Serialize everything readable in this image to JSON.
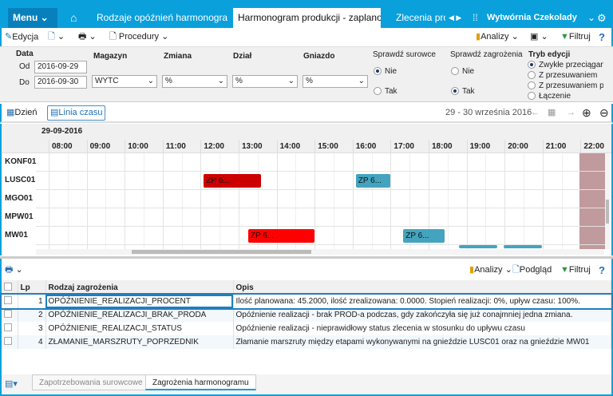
{
  "topbar": {
    "menu": "Menu",
    "tabs": [
      "Rodzaje opóźnień harmonogramu",
      "Harmonogram produkcji - zaplanowane",
      "Zlecenia produkcyjne"
    ],
    "company": "Wytwórnia Czekolady",
    "accent": "#0aa0dc"
  },
  "toolbar": {
    "edit": "Edycja",
    "procedures": "Procedury",
    "analyses": "Analizy",
    "filter": "Filtruj"
  },
  "filters": {
    "date_label": "Data",
    "from_label": "Od",
    "from": "2016-09-29",
    "to_label": "Do",
    "to": "2016-09-30",
    "warehouse_label": "Magazyn",
    "warehouse": "WYTC",
    "shift_label": "Zmiana",
    "shift": "%",
    "dept_label": "Dział",
    "dept": "%",
    "socket_label": "Gniazdo",
    "socket": "%",
    "materials_label": "Sprawdź surowce",
    "materials_options": [
      "Nie",
      "Tak"
    ],
    "materials_selected": "Nie",
    "threats_label": "Sprawdź zagrożenia",
    "threats_options": [
      "Nie",
      "Tak"
    ],
    "threats_selected": "Tak",
    "mode_label": "Tryb edycji",
    "mode_options": [
      "Zwykłe przeciąganie",
      "Z przesuwaniem",
      "Z przesuwaniem po",
      "Łączenie"
    ],
    "mode_selected": "Zwykłe przeciąganie"
  },
  "timeline": {
    "day": "Dzień",
    "timeline": "Linia czasu",
    "range": "29 - 30 września 2016",
    "date": "29-09-2016",
    "hours": [
      "08:00",
      "09:00",
      "10:00",
      "11:00",
      "12:00",
      "13:00",
      "14:00",
      "15:00",
      "16:00",
      "17:00",
      "18:00",
      "19:00",
      "20:00",
      "21:00",
      "22:00"
    ],
    "rows": [
      "KONF01",
      "LUSC01",
      "MGO01",
      "MPW01",
      "MW01"
    ],
    "bars": [
      {
        "row": 1,
        "start": "12:05",
        "end": "13:35",
        "label": "ZP 6...",
        "color": "#cc0000"
      },
      {
        "row": 1,
        "start": "16:05",
        "end": "17:00",
        "label": "ZP 6...",
        "color": "#44a4bf"
      },
      {
        "row": 4,
        "start": "13:15",
        "end": "15:00",
        "label": "ZP 6...",
        "color": "#ff0000"
      },
      {
        "row": 4,
        "start": "17:20",
        "end": "18:25",
        "label": "ZP 6...",
        "color": "#44a4bf"
      }
    ]
  },
  "bottom": {
    "analyses": "Analizy",
    "preview": "Podgląd",
    "filter": "Filtruj",
    "columns": [
      "Lp",
      "Rodzaj zagrożenia",
      "Opis"
    ],
    "rows": [
      {
        "lp": "1",
        "type": "OPÓŹNIENIE_REALIZACJI_PROCENT",
        "desc": "Ilość planowana: 45.2000, ilość zrealizowana: 0.0000. Stopień realizacji: 0%, upływ czasu: 100%."
      },
      {
        "lp": "2",
        "type": "OPÓŹNIENIE_REALIZACJI_BRAK_PRODA",
        "desc": "Opóźnienie realizacji - brak PROD-a podczas, gdy zakończyła się już conajmniej jedna zmiana."
      },
      {
        "lp": "3",
        "type": "OPÓŹNIENIE_REALIZACJI_STATUS",
        "desc": "Opóźnienie realizacji - nieprawidłowy status zlecenia w stosunku do upływu czasu"
      },
      {
        "lp": "4",
        "type": "ZŁAMANIE_MARSZRUTY_POPRZEDNIK",
        "desc": "Złamanie marszruty między etapami wykonywanymi na gnieździe LUSC01 oraz na gnieździe MW01"
      }
    ],
    "tabs": [
      "Zapotrzebowania surowcowe",
      "Zagrożenia harmonogramu"
    ]
  }
}
